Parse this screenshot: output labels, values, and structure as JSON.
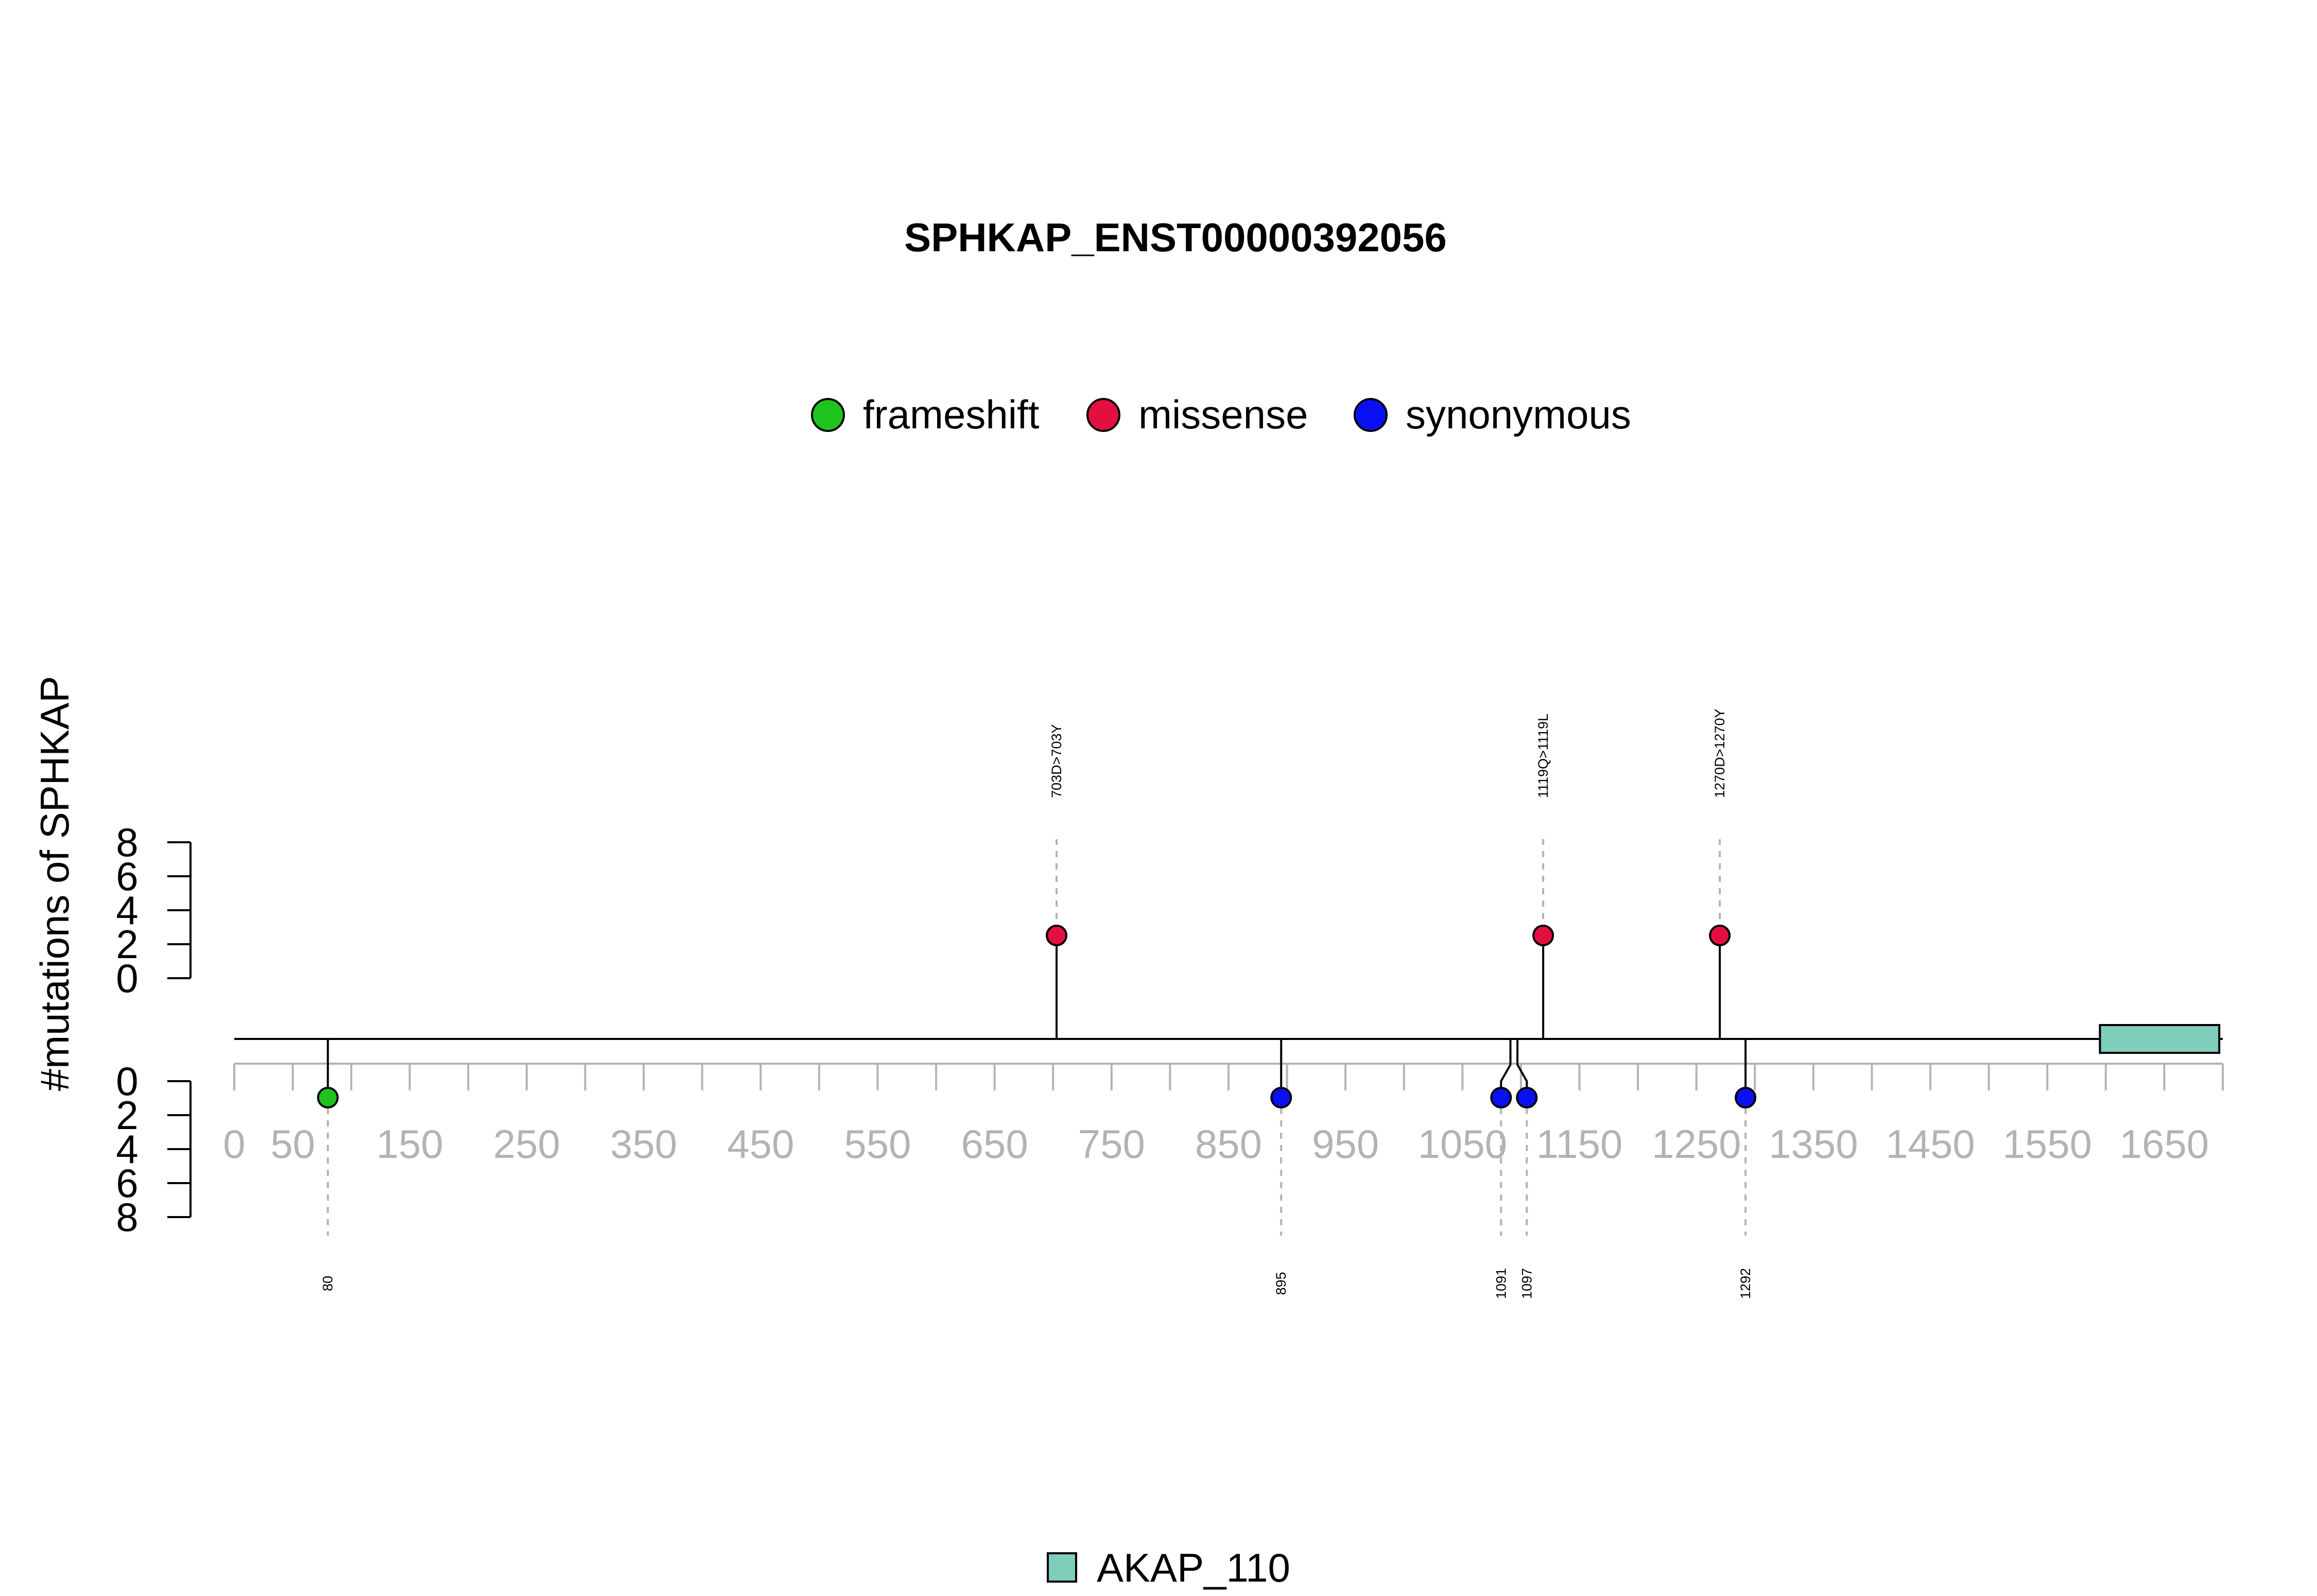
{
  "chart_data": {
    "type": "lollipop",
    "title": "SPHKAP_ENST00000392056",
    "ylabel": "#mutations of SPHKAP",
    "protein_length": 1700,
    "x_ticks": [
      0,
      50,
      150,
      250,
      350,
      450,
      550,
      650,
      750,
      850,
      950,
      1050,
      1150,
      1250,
      1350,
      1450,
      1550,
      1650
    ],
    "y_ticks_top": [
      0,
      2,
      4,
      6,
      8
    ],
    "y_ticks_bottom": [
      0,
      2,
      4,
      6,
      8
    ],
    "legend": [
      {
        "name": "frameshift",
        "color": "#1ec31e"
      },
      {
        "name": "missense",
        "color": "#e3103f"
      },
      {
        "name": "synonymous",
        "color": "#0a10f5"
      }
    ],
    "mutations_top": [
      {
        "position": 703,
        "label": "703D>703Y",
        "type": "missense",
        "count": 1
      },
      {
        "position": 1119,
        "label": "1119Q>1119L",
        "type": "missense",
        "count": 1
      },
      {
        "position": 1270,
        "label": "1270D>1270Y",
        "type": "missense",
        "count": 1
      }
    ],
    "mutations_bottom": [
      {
        "position": 80,
        "label": "80",
        "type": "frameshift",
        "count": 1
      },
      {
        "position": 895,
        "label": "895",
        "type": "synonymous",
        "count": 1
      },
      {
        "position": 1091,
        "label": "1091",
        "type": "synonymous",
        "count": 1
      },
      {
        "position": 1097,
        "label": "1097",
        "type": "synonymous",
        "count": 1
      },
      {
        "position": 1292,
        "label": "1292",
        "type": "synonymous",
        "count": 1
      }
    ],
    "domains": [
      {
        "name": "AKAP_110",
        "start": 1595,
        "end": 1697,
        "color": "#7fcdbb"
      }
    ]
  }
}
